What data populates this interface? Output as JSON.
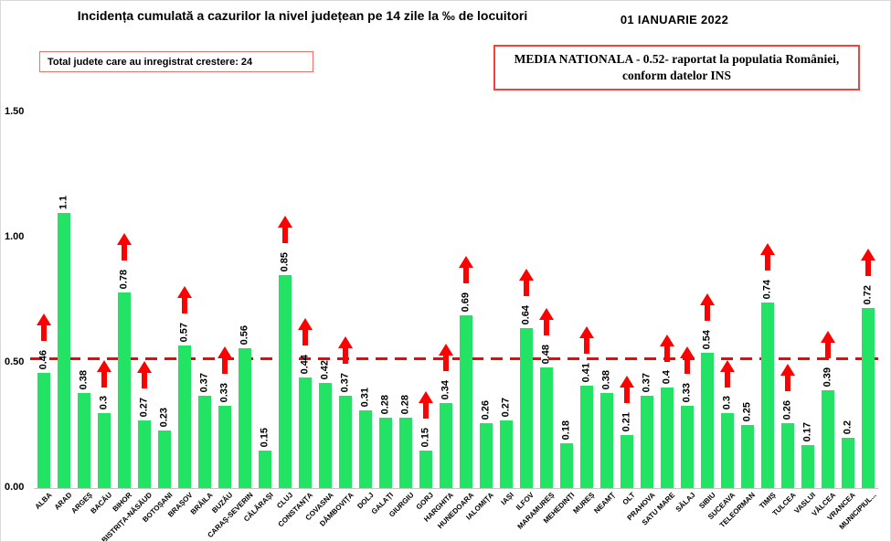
{
  "header": {
    "title": "Incidența cumulată a cazurilor la nivel județean pe 14 zile la ‰ de locuitori",
    "date": "01 IANUARIE 2022",
    "total_box": "Total judete care au inregistrat crestere: 24",
    "media_line1": "MEDIA NATIONALA - 0.52-  raportat la populatia  României,",
    "media_line2": "conform datelor INS"
  },
  "colors": {
    "bar_green": "#22e364",
    "arrow_red": "#fe0000",
    "refline_red": "#fe0000",
    "box_border_red": "#f4423b",
    "axis_gray": "#c6c6c6"
  },
  "chart_data": {
    "type": "bar",
    "title": "Incidența cumulată a cazurilor la nivel județean pe 14 zile la ‰ de locuitori",
    "xlabel": "",
    "ylabel": "",
    "ylim": [
      0,
      1.5
    ],
    "ytick_labels": [
      "0.00",
      "0.50",
      "1.00",
      "1.50"
    ],
    "ytick_values": [
      0,
      0.5,
      1.0,
      1.5
    ],
    "grid": false,
    "legend": "none",
    "average_line": {
      "value": 0.52,
      "style": "dashed",
      "color": "#fe0000",
      "meaning": "media nationala"
    },
    "categories": [
      "ALBA",
      "ARAD",
      "ARGEȘ",
      "BACĂU",
      "BIHOR",
      "BISTRIȚA-NĂSĂUD",
      "BOTOȘANI",
      "BRAȘOV",
      "BRĂILA",
      "BUZĂU",
      "CARAȘ-SEVERIN",
      "CĂLĂRAȘI",
      "CLUJ",
      "CONSTANȚA",
      "COVASNA",
      "DÂMBOVIȚA",
      "DOLJ",
      "GALAȚI",
      "GIURGIU",
      "GORJ",
      "HARGHITA",
      "HUNEDOARA",
      "IALOMIȚA",
      "IAȘI",
      "ILFOV",
      "MARAMUREȘ",
      "MEHEDINȚI",
      "MUREȘ",
      "NEAMȚ",
      "OLT",
      "PRAHOVA",
      "SATU MARE",
      "SĂLAJ",
      "SIBIU",
      "SUCEAVA",
      "TELEORMAN",
      "TIMIȘ",
      "TULCEA",
      "VASLUI",
      "VÂLCEA",
      "VRANCEA",
      "MUNICIPIUL..."
    ],
    "values": [
      0.46,
      1.1,
      0.38,
      0.3,
      0.78,
      0.27,
      0.23,
      0.57,
      0.37,
      0.33,
      0.56,
      0.15,
      0.85,
      0.44,
      0.42,
      0.37,
      0.31,
      0.28,
      0.28,
      0.15,
      0.34,
      0.69,
      0.26,
      0.27,
      0.64,
      0.48,
      0.18,
      0.41,
      0.38,
      0.21,
      0.37,
      0.4,
      0.33,
      0.54,
      0.3,
      0.25,
      0.74,
      0.26,
      0.17,
      0.39,
      0.2,
      0.72
    ],
    "value_labels": [
      "0.46",
      "1.1",
      "0.38",
      "0.3",
      "0.78",
      "0.27",
      "0.23",
      "0.57",
      "0.37",
      "0.33",
      "0.56",
      "0.15",
      "0.85",
      "0.44",
      "0.42",
      "0.37",
      "0.31",
      "0.28",
      "0.28",
      "0.15",
      "0.34",
      "0.69",
      "0.26",
      "0.27",
      "0.64",
      "0.48",
      "0.18",
      "0.41",
      "0.38",
      "0.21",
      "0.37",
      "0.4",
      "0.33",
      "0.54",
      "0.3",
      "0.25",
      "0.74",
      "0.26",
      "0.17",
      "0.39",
      "0.2",
      "0.72"
    ],
    "increase": [
      true,
      false,
      false,
      true,
      true,
      true,
      false,
      true,
      false,
      true,
      false,
      false,
      true,
      true,
      false,
      true,
      false,
      false,
      false,
      true,
      true,
      true,
      false,
      false,
      true,
      true,
      false,
      true,
      false,
      true,
      false,
      true,
      true,
      true,
      true,
      false,
      true,
      true,
      false,
      true,
      false,
      true
    ],
    "bar_color": "#22e364",
    "arrow_color": "#fe0000"
  }
}
